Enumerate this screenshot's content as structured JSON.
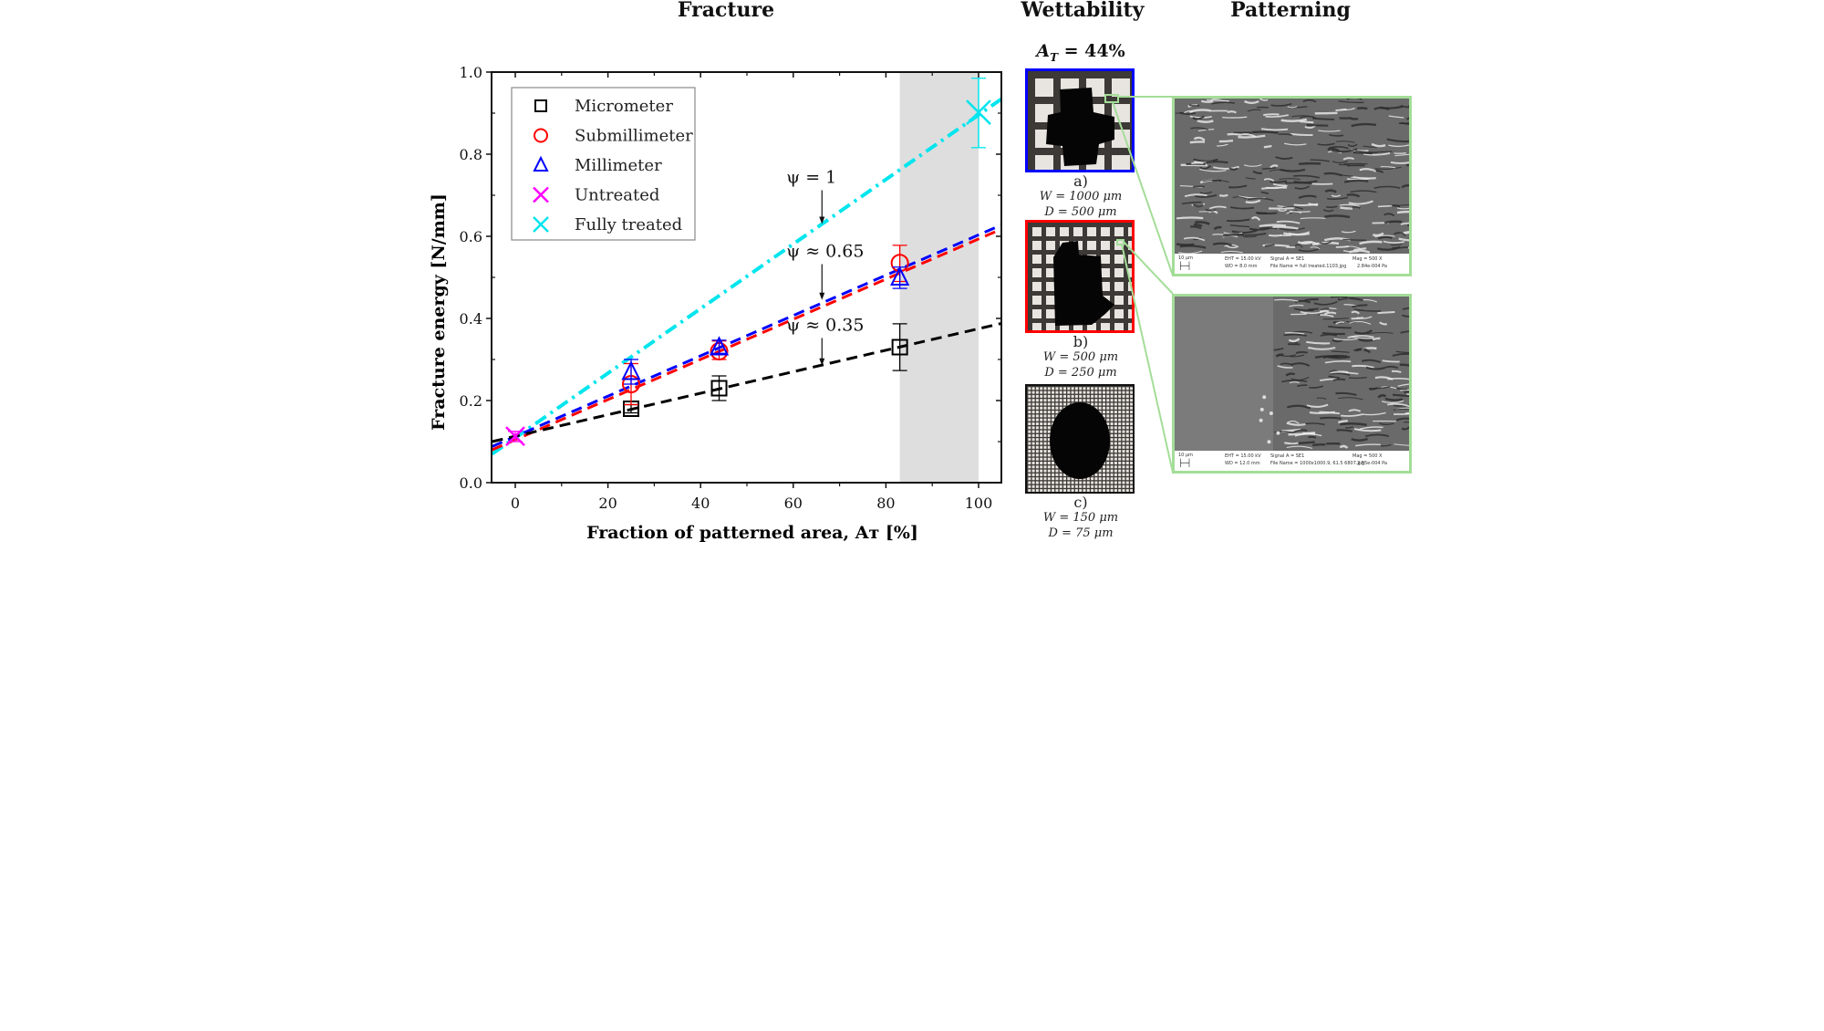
{
  "titles": {
    "fracture": "Fracture",
    "wettability": "Wettability",
    "patterning": "Patterning"
  },
  "chart_data": {
    "type": "scatter",
    "title": "Fracture",
    "xlabel": "Fraction of patterned area,  A_T [%]",
    "ylabel": "Fracture energy [N/mm]",
    "xlim": [
      -5,
      105
    ],
    "ylim": [
      0.0,
      1.0
    ],
    "xticks": [
      0,
      20,
      40,
      60,
      80,
      100
    ],
    "yticks": [
      0.0,
      0.2,
      0.4,
      0.6,
      0.8,
      1.0
    ],
    "xtick_labels": [
      "0",
      "20",
      "40",
      "60",
      "80",
      "100"
    ],
    "ytick_labels": [
      "0.0",
      "0.2",
      "0.4",
      "0.6",
      "0.8",
      "1.0"
    ],
    "grid": false,
    "legend_position": "upper left",
    "shaded_region": {
      "x0": 83,
      "x1": 100,
      "color": "#dedede"
    },
    "series": [
      {
        "name": "Micrometer",
        "marker": "square",
        "color": "#000000",
        "x": [
          25,
          44,
          83
        ],
        "y": [
          0.18,
          0.23,
          0.33
        ],
        "err_low": [
          0.17,
          0.2,
          0.273
        ],
        "err_high": [
          0.19,
          0.26,
          0.387
        ]
      },
      {
        "name": "Submillimeter",
        "marker": "circle",
        "color": "#ff0000",
        "x": [
          25,
          44,
          83
        ],
        "y": [
          0.24,
          0.32,
          0.535
        ],
        "err_low": [
          0.19,
          0.3,
          0.49
        ],
        "err_high": [
          0.29,
          0.345,
          0.578
        ]
      },
      {
        "name": "Millimeter",
        "marker": "triangle",
        "color": "#0000ff",
        "x": [
          25,
          44,
          83
        ],
        "y": [
          0.27,
          0.33,
          0.5
        ],
        "err_low": [
          0.24,
          0.315,
          0.473
        ],
        "err_high": [
          0.3,
          0.347,
          0.525
        ]
      },
      {
        "name": "Untreated",
        "marker": "x",
        "color": "#ff00ff",
        "x": [
          0
        ],
        "y": [
          0.113
        ],
        "err_low": [
          0.1
        ],
        "err_high": [
          0.125
        ]
      },
      {
        "name": "Fully treated",
        "marker": "x",
        "color": "#00e5ee",
        "x": [
          100
        ],
        "y": [
          0.902
        ],
        "err_low": [
          0.816
        ],
        "err_high": [
          0.985
        ]
      }
    ],
    "fit_lines": [
      {
        "name": "psi = 1",
        "style": "dashdot",
        "color": "#00e5ee",
        "x": [
          -5,
          105
        ],
        "y": [
          0.07,
          0.935
        ]
      },
      {
        "name": "psi ~ 0.65 (Millimeter)",
        "style": "dashed",
        "color": "#0000ff",
        "x": [
          -5,
          105
        ],
        "y": [
          0.088,
          0.628
        ]
      },
      {
        "name": "psi ~ 0.65 (Submillimeter)",
        "style": "dashed",
        "color": "#ff0000",
        "x": [
          -5,
          105
        ],
        "y": [
          0.08,
          0.618
        ]
      },
      {
        "name": "psi ~ 0.35",
        "style": "dashed",
        "color": "#000000",
        "x": [
          -5,
          105
        ],
        "y": [
          0.1,
          0.388
        ]
      }
    ],
    "annotations": [
      {
        "text": "ψ = 1",
        "x": 66,
        "y": 0.73,
        "arrow_to_y": 0.63
      },
      {
        "text": "ψ ≈ 0.65",
        "x": 66,
        "y": 0.55,
        "arrow_to_y": 0.445
      },
      {
        "text": "ψ ≈ 0.35",
        "x": 66,
        "y": 0.37,
        "arrow_to_y": 0.285
      }
    ]
  },
  "wettability": {
    "header": "A_T = 44%",
    "header_main": "A",
    "header_sub": "T",
    "header_rest": " = 44%",
    "panels": [
      {
        "label": "a)",
        "w": "W = 1000 μm",
        "d": "D = 500 μm",
        "border": "#0000ff"
      },
      {
        "label": "b)",
        "w": "W = 500 μm",
        "d": "D = 250 μm",
        "border": "#ff0000"
      },
      {
        "label": "c)",
        "w": "W = 150 μm",
        "d": "D = 75 μm",
        "border": "#111111"
      }
    ]
  },
  "patterning": {
    "highlight_color": "#a4dd98",
    "sem": [
      {
        "scale": "10 μm",
        "eht": "EHT = 15.00 kV",
        "wd": "WD = 8.0 mm",
        "signal": "Signal A = SE1",
        "file": "File Name = full treated.1103.jpg",
        "mag": "Mag =  500 X",
        "pressure": "2.84e-004 Pa"
      },
      {
        "scale": "10 μm",
        "eht": "EHT = 15.00 kV",
        "wd": "WD = 12.0 mm",
        "signal": "Signal A = SE1",
        "file": "File Name = 1000x1000.9, 61.5 6807.jpg",
        "mag": "Mag =  500 X",
        "pressure": "2.55e-004 Pa"
      }
    ]
  }
}
